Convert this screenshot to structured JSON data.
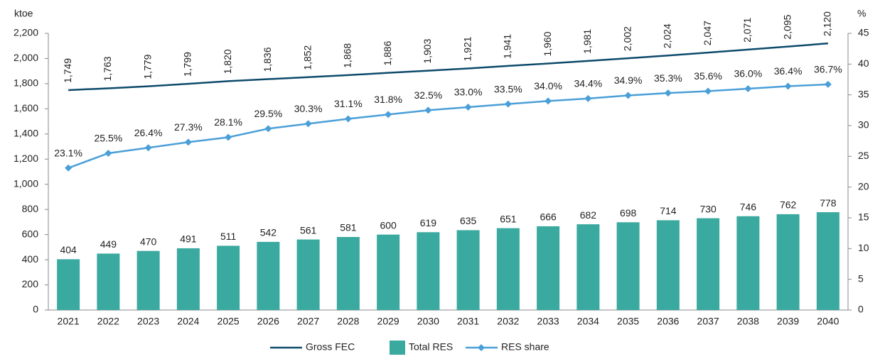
{
  "chart_data": {
    "type": "combo",
    "y_label": "ktoe",
    "y2_label": "%",
    "categories": [
      "2021",
      "2022",
      "2023",
      "2024",
      "2025",
      "2026",
      "2027",
      "2028",
      "2029",
      "2030",
      "2031",
      "2032",
      "2033",
      "2034",
      "2035",
      "2036",
      "2037",
      "2038",
      "2039",
      "2040"
    ],
    "ylim": [
      0,
      2200
    ],
    "yticks": [
      0,
      200,
      400,
      600,
      800,
      {
        "value": 1000,
        "label": "1,000"
      },
      {
        "value": 1200,
        "label": "1,200"
      },
      {
        "value": 1400,
        "label": "1,400"
      },
      {
        "value": 1600,
        "label": "1,600"
      },
      {
        "value": 1800,
        "label": "1,800"
      },
      {
        "value": 2000,
        "label": "2,000"
      },
      {
        "value": 2200,
        "label": "2,200"
      }
    ],
    "y2lim": [
      0,
      45
    ],
    "y2ticks": [
      0,
      5,
      10,
      15,
      20,
      25,
      30,
      35,
      40,
      45
    ],
    "series": [
      {
        "name": "Gross FEC",
        "type": "line",
        "color": "#0d4a6b",
        "values": [
          1749,
          1763,
          1779,
          1799,
          1820,
          1836,
          1852,
          1868,
          1886,
          1903,
          1921,
          1941,
          1960,
          1981,
          2002,
          2024,
          2047,
          2071,
          2095,
          2120
        ],
        "value_labels": [
          "1,749",
          "1,763",
          "1,779",
          "1,799",
          "1,820",
          "1,836",
          "1,852",
          "1,868",
          "1,886",
          "1,903",
          "1,921",
          "1,941",
          "1,960",
          "1,981",
          "2,002",
          "2,024",
          "2,047",
          "2,071",
          "2,095",
          "2,120"
        ]
      },
      {
        "name": "Total RES",
        "type": "bar",
        "color": "#3aa99f",
        "values": [
          404,
          449,
          470,
          491,
          511,
          542,
          561,
          581,
          600,
          619,
          635,
          651,
          666,
          682,
          698,
          714,
          730,
          746,
          762,
          778
        ]
      },
      {
        "name": "RES share",
        "type": "marker-line",
        "axis": "y2",
        "color": "#4a9fd8",
        "values": [
          23.1,
          25.5,
          26.4,
          27.3,
          28.1,
          29.5,
          30.3,
          31.1,
          31.8,
          32.5,
          33.0,
          33.5,
          34.0,
          34.4,
          34.9,
          35.3,
          35.6,
          36.0,
          36.4,
          36.7
        ],
        "value_labels": [
          "23.1%",
          "25.5%",
          "26.4%",
          "27.3%",
          "28.1%",
          "29.5%",
          "30.3%",
          "31.1%",
          "31.8%",
          "32.5%",
          "33.0%",
          "33.5%",
          "34.0%",
          "34.4%",
          "34.9%",
          "35.3%",
          "35.6%",
          "36.0%",
          "36.4%",
          "36.7%"
        ]
      }
    ]
  }
}
